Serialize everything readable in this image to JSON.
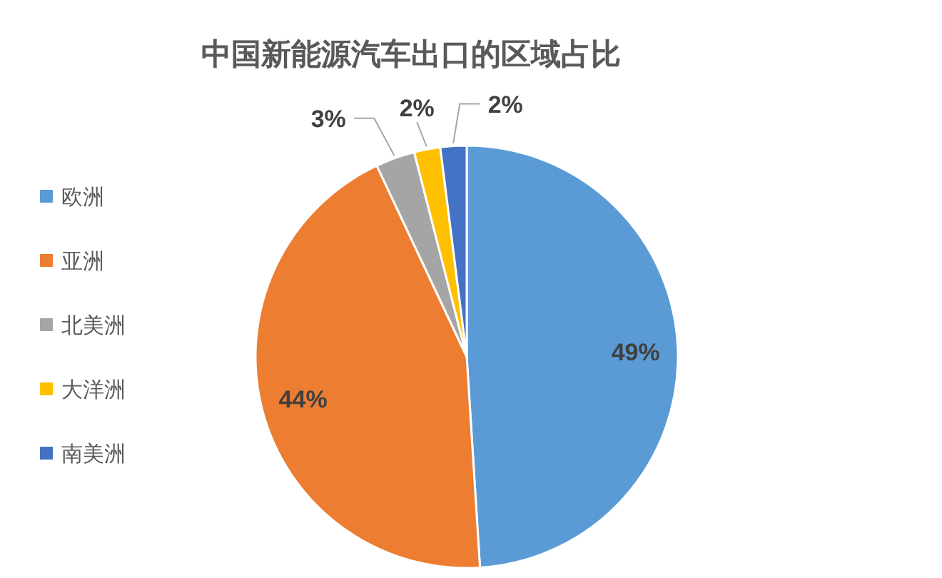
{
  "chart_data": {
    "type": "pie",
    "title": "中国新能源汽车出口的区域占比",
    "categories": [
      "欧洲",
      "亚洲",
      "北美洲",
      "大洋洲",
      "南美洲"
    ],
    "values": [
      49,
      44,
      3,
      2,
      2
    ],
    "colors": [
      "#5b9bd5",
      "#ed7d31",
      "#a5a5a5",
      "#ffc000",
      "#4472c4"
    ],
    "value_labels": [
      "49%",
      "44%",
      "3%",
      "2%",
      "2%"
    ],
    "legend": "left"
  }
}
